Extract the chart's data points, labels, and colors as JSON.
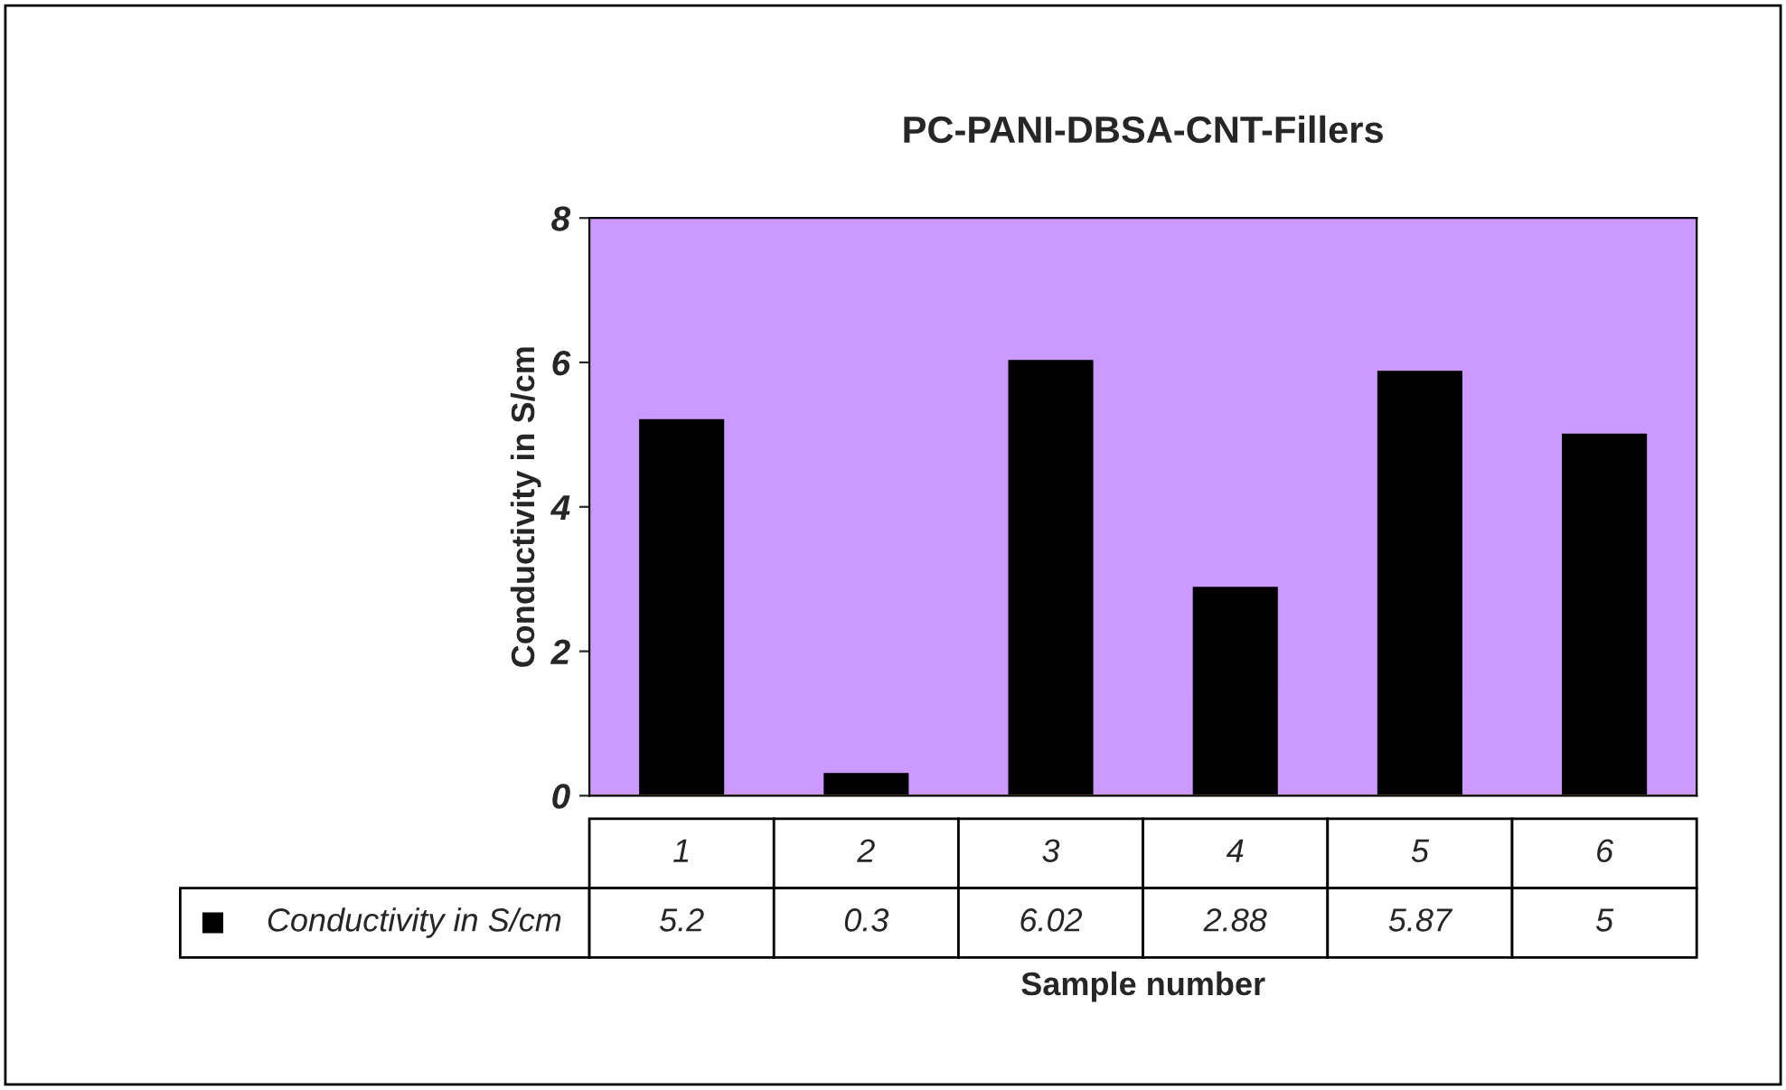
{
  "chart_data": {
    "type": "bar",
    "title": "PC-PANI-DBSA-CNT-Fillers",
    "xlabel": "Sample number",
    "ylabel": "Conductivity in S/cm",
    "categories": [
      "1",
      "2",
      "3",
      "4",
      "5",
      "6"
    ],
    "series": [
      {
        "name": "Conductivity in S/cm",
        "color": "#000000",
        "values": [
          5.2,
          0.3,
          6.02,
          2.88,
          5.87,
          5
        ]
      }
    ],
    "ylim": [
      0,
      8
    ],
    "yticks": [
      0,
      2,
      4,
      6,
      8
    ],
    "grid": false,
    "legend": "bottom left",
    "data_labels": true
  }
}
